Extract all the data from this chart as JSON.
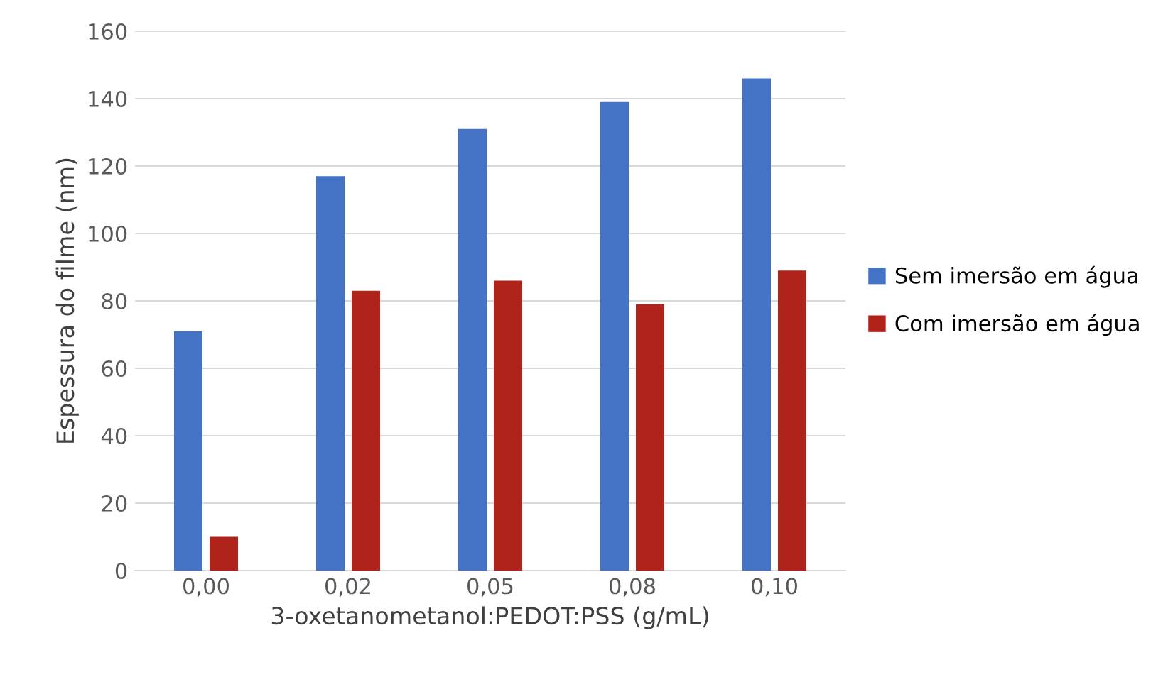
{
  "chart_data": {
    "type": "bar",
    "xlabel": "3-oxetanometanol:PEDOT:PSS (g/mL)",
    "ylabel": "Espessura do filme (nm)",
    "categories": [
      "0,00",
      "0,02",
      "0,05",
      "0,08",
      "0,10"
    ],
    "series": [
      {
        "name": "Sem imersão em água",
        "color": "#4472c4",
        "values": [
          71,
          117,
          131,
          139,
          146
        ]
      },
      {
        "name": "Com imersão em água",
        "color": "#b0231a",
        "values": [
          10,
          83,
          86,
          79,
          89
        ]
      }
    ],
    "ylim": [
      0,
      160
    ],
    "yticks": [
      0,
      20,
      40,
      60,
      80,
      100,
      120,
      140,
      160
    ],
    "grid": "y",
    "legend": "right"
  }
}
